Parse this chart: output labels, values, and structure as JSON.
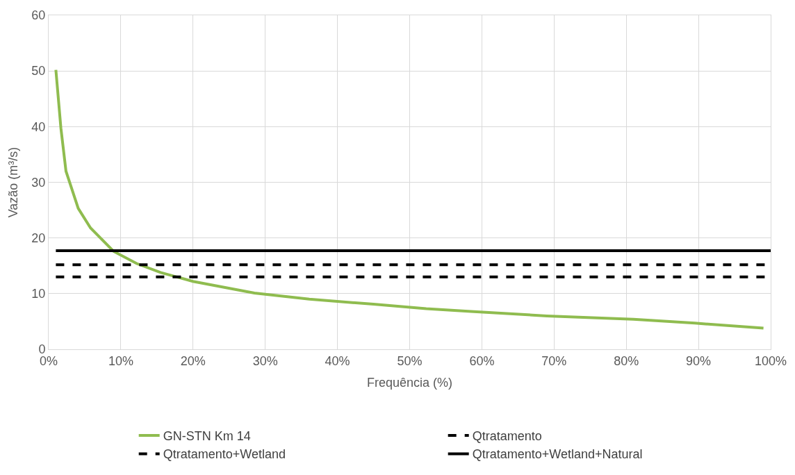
{
  "chart_data": {
    "type": "line",
    "xlabel": "Frequência (%)",
    "ylabel": "Vazão (m³/s)",
    "xlim": [
      0,
      100
    ],
    "ylim": [
      0,
      60
    ],
    "xticks": [
      {
        "value": 0,
        "label": "0%"
      },
      {
        "value": 10,
        "label": "10%"
      },
      {
        "value": 20,
        "label": "20%"
      },
      {
        "value": 30,
        "label": "30%"
      },
      {
        "value": 40,
        "label": "40%"
      },
      {
        "value": 50,
        "label": "50%"
      },
      {
        "value": 60,
        "label": "60%"
      },
      {
        "value": 70,
        "label": "70%"
      },
      {
        "value": 80,
        "label": "80%"
      },
      {
        "value": 90,
        "label": "90%"
      },
      {
        "value": 100,
        "label": "100%"
      }
    ],
    "yticks": [
      0,
      10,
      20,
      30,
      40,
      50,
      60
    ],
    "grid": true,
    "legend": "bottom",
    "marker": "none",
    "series": [
      {
        "name": "GN-STN Km 14",
        "color": "#8fbc4f",
        "line_style": "solid",
        "x": [
          1,
          1.7,
          2.4,
          4.1,
          5.8,
          9,
          12.2,
          15.5,
          20,
          28.5,
          36.1,
          45,
          52.3,
          58.5,
          69,
          81,
          89.5,
          99
        ],
        "values": [
          50.2,
          39.7,
          32,
          25.3,
          21.8,
          17.6,
          15.4,
          13.8,
          12.2,
          10.1,
          9,
          8.1,
          7.3,
          6.8,
          6,
          5.4,
          4.7,
          3.8
        ]
      },
      {
        "name": "Qtratamento",
        "color": "#000000",
        "line_style": "dashed",
        "x": [
          1,
          100
        ],
        "values": [
          13,
          13
        ]
      },
      {
        "name": "Qtratamento+Wetland",
        "color": "#000000",
        "line_style": "dashed",
        "x": [
          1,
          100
        ],
        "values": [
          15.2,
          15.2
        ]
      },
      {
        "name": "Qtratamento+Wetland+Natural",
        "color": "#000000",
        "line_style": "solid",
        "x": [
          1,
          100
        ],
        "values": [
          17.7,
          17.7
        ]
      }
    ]
  }
}
